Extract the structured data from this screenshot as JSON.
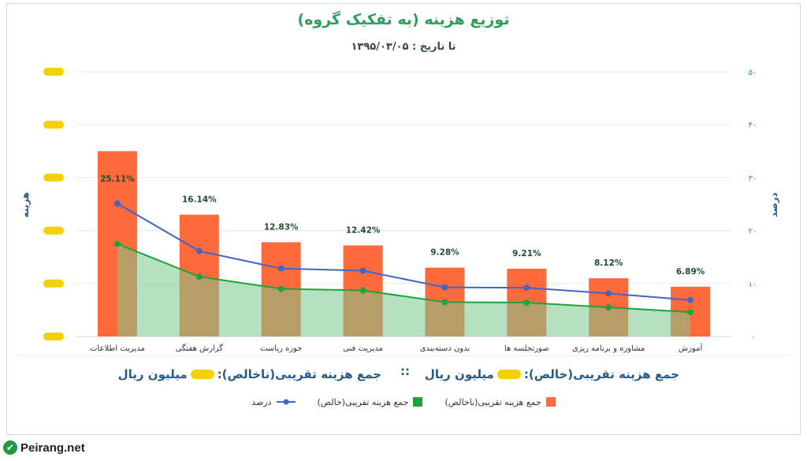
{
  "page": {
    "title": "توزیع هزینه (به تفکیک گروه)",
    "subtitle": "تا تاریخ : ۱۳۹۵/۰۳/۰۵",
    "summary_right_prefix": "جمع هزینه تقریبی(خالص):",
    "summary_right_suffix": "میلیون ریال",
    "summary_separator": "::",
    "summary_left_prefix": "جمع هزینه تقریبی(ناخالص):",
    "summary_left_suffix": "میلیون ریال",
    "logo_text": "Peirang.net",
    "logo_icon": "check-icon"
  },
  "legend": [
    {
      "label": "جمع هزینه تقریبی(ناخالص)",
      "color": "#ff6a3d",
      "kind": "square"
    },
    {
      "label": "جمع هزینه تقریبی(خالص)",
      "color": "#1ea33c",
      "kind": "square"
    },
    {
      "label": "درصد",
      "color": "#4466c0",
      "kind": "line-dot"
    }
  ],
  "chart_data": {
    "type": "bar",
    "categories": [
      "مدیریت اطلاعات",
      "گزارش هفتگی",
      "حوزه ریاست",
      "مدیریت فنی",
      "بدون دسته‌بندی",
      "صورتجلسه ها",
      "مشاوره و برنامه ریزی",
      "آموزش"
    ],
    "series": [
      {
        "name": "جمع هزینه تقریبی(ناخالص)",
        "type": "bar",
        "axis": "left",
        "color": "#ff6a3d",
        "values": [
          35,
          23,
          17.8,
          17.2,
          13,
          12.8,
          11,
          9.4
        ]
      },
      {
        "name": "جمع هزینه تقریبی(خالص)",
        "type": "area",
        "axis": "left",
        "color": "#1ea33c",
        "values": [
          17.5,
          11.3,
          9,
          8.7,
          6.5,
          6.4,
          5.5,
          4.6
        ]
      },
      {
        "name": "درصد",
        "type": "line",
        "axis": "right",
        "color": "#4466c0",
        "values": [
          25.11,
          16.14,
          12.83,
          12.42,
          9.28,
          9.21,
          8.12,
          6.89
        ]
      }
    ],
    "data_labels": [
      "25.11%",
      "16.14%",
      "12.83%",
      "12.42%",
      "9.28%",
      "9.21%",
      "8.12%",
      "6.89%"
    ],
    "ylabel": "هزینه",
    "y2label": "درصد",
    "ylim": [
      0,
      50
    ],
    "y2lim": [
      0,
      50
    ],
    "y2_ticks": [
      "۰",
      "۱۰",
      "۲۰",
      "۳۰",
      "۴۰",
      "۵۰"
    ],
    "y_ticks_obscured": true,
    "grid": true
  }
}
